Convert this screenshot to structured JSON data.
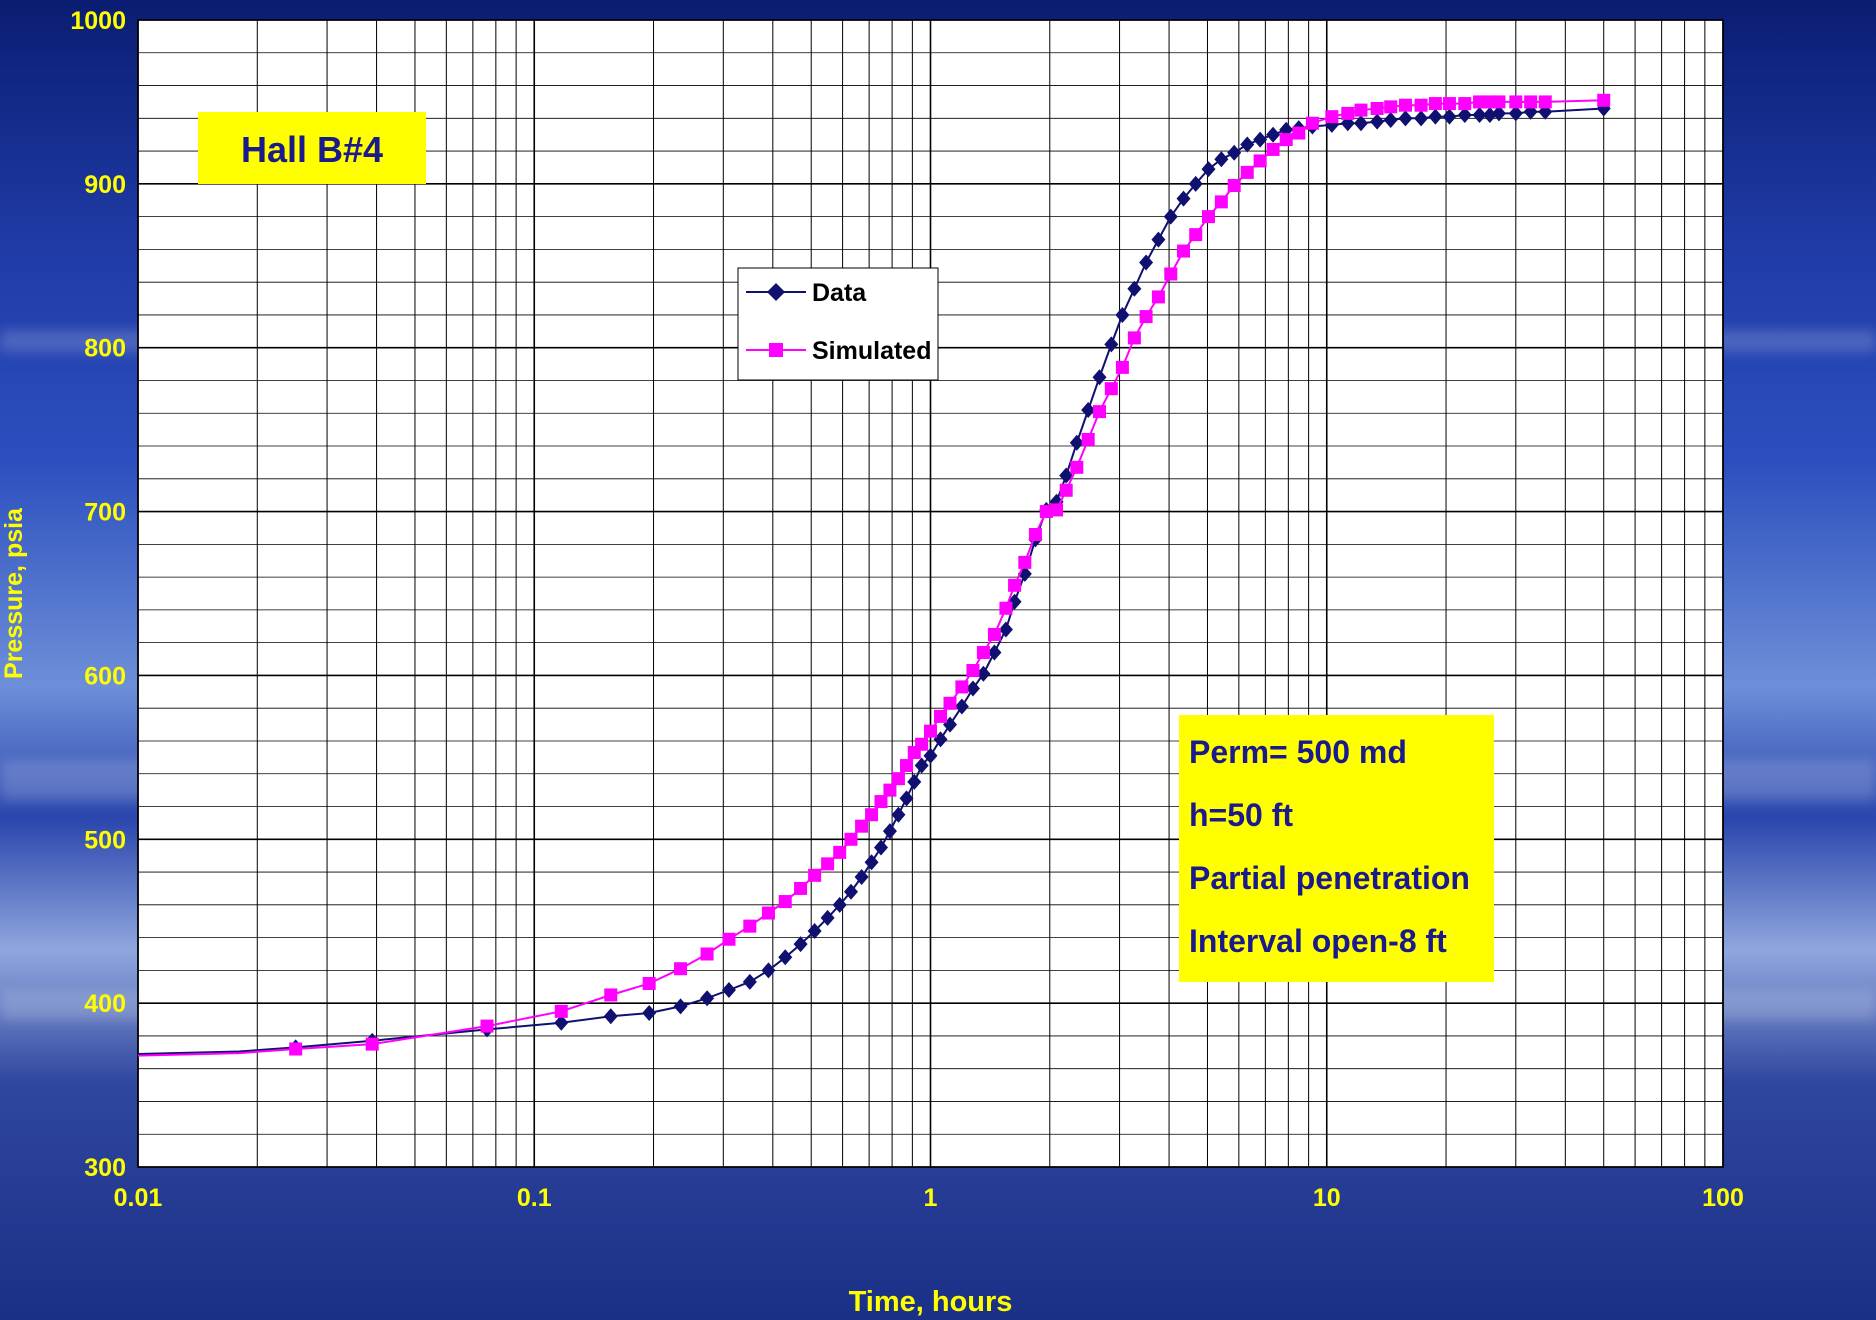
{
  "chart_data": {
    "type": "scatter",
    "title": "",
    "xlabel": "Time, hours",
    "ylabel": "Pressure, psia",
    "xscale": "log",
    "xlim": [
      0.01,
      100
    ],
    "ylim": [
      300,
      1000
    ],
    "x_ticks": [
      "0.01",
      "0.1",
      "1",
      "10",
      "100"
    ],
    "y_ticks": [
      "300",
      "400",
      "500",
      "600",
      "700",
      "800",
      "900",
      "1000"
    ],
    "grid": true,
    "legend_position": "upper-center",
    "annotations": {
      "well": "Hall B#4",
      "params": [
        "Perm= 500 md",
        "h=50 ft",
        "Partial penetration",
        "Interval open-8 ft"
      ]
    },
    "series": [
      {
        "name": "Data",
        "color": "#101070",
        "marker": "diamond",
        "points": [
          [
            0.025,
            373
          ],
          [
            0.039,
            377
          ],
          [
            0.076,
            384
          ],
          [
            0.117,
            388
          ],
          [
            0.156,
            392
          ],
          [
            0.195,
            394
          ],
          [
            0.234,
            398
          ],
          [
            0.273,
            403
          ],
          [
            0.31,
            408
          ],
          [
            0.35,
            413
          ],
          [
            0.39,
            420
          ],
          [
            0.43,
            428
          ],
          [
            0.47,
            436
          ],
          [
            0.51,
            444
          ],
          [
            0.55,
            452
          ],
          [
            0.59,
            460
          ],
          [
            0.63,
            468
          ],
          [
            0.67,
            477
          ],
          [
            0.71,
            486
          ],
          [
            0.75,
            495
          ],
          [
            0.79,
            505
          ],
          [
            0.83,
            515
          ],
          [
            0.87,
            525
          ],
          [
            0.91,
            535
          ],
          [
            0.95,
            545
          ],
          [
            1.0,
            551
          ],
          [
            1.06,
            561
          ],
          [
            1.12,
            570
          ],
          [
            1.2,
            581
          ],
          [
            1.28,
            592
          ],
          [
            1.36,
            601
          ],
          [
            1.45,
            614
          ],
          [
            1.55,
            628
          ],
          [
            1.63,
            645
          ],
          [
            1.73,
            662
          ],
          [
            1.84,
            683
          ],
          [
            1.96,
            701
          ],
          [
            2.08,
            706
          ],
          [
            2.2,
            722
          ],
          [
            2.34,
            742
          ],
          [
            2.5,
            762
          ],
          [
            2.67,
            782
          ],
          [
            2.86,
            802
          ],
          [
            3.05,
            820
          ],
          [
            3.27,
            836
          ],
          [
            3.5,
            852
          ],
          [
            3.76,
            866
          ],
          [
            4.04,
            880
          ],
          [
            4.35,
            891
          ],
          [
            4.67,
            900
          ],
          [
            5.03,
            909
          ],
          [
            5.42,
            915
          ],
          [
            5.84,
            919
          ],
          [
            6.3,
            924
          ],
          [
            6.79,
            927
          ],
          [
            7.32,
            930
          ],
          [
            7.9,
            933
          ],
          [
            8.5,
            934
          ],
          [
            9.2,
            935
          ],
          [
            10.3,
            936
          ],
          [
            11.3,
            937
          ],
          [
            12.2,
            937
          ],
          [
            13.4,
            938
          ],
          [
            14.5,
            939
          ],
          [
            15.8,
            940
          ],
          [
            17.3,
            940
          ],
          [
            18.8,
            941
          ],
          [
            20.4,
            941
          ],
          [
            22.3,
            942
          ],
          [
            24.3,
            942
          ],
          [
            25.8,
            942
          ],
          [
            27.2,
            943
          ],
          [
            30.0,
            943
          ],
          [
            32.7,
            944
          ],
          [
            35.6,
            944
          ],
          [
            50.0,
            946
          ]
        ]
      },
      {
        "name": "Simulated",
        "color": "#ff00ff",
        "marker": "square",
        "points": [
          [
            0.025,
            372
          ],
          [
            0.039,
            375
          ],
          [
            0.076,
            386
          ],
          [
            0.117,
            395
          ],
          [
            0.156,
            405
          ],
          [
            0.195,
            412
          ],
          [
            0.234,
            421
          ],
          [
            0.273,
            430
          ],
          [
            0.31,
            439
          ],
          [
            0.35,
            447
          ],
          [
            0.39,
            455
          ],
          [
            0.43,
            462
          ],
          [
            0.47,
            470
          ],
          [
            0.51,
            478
          ],
          [
            0.55,
            485
          ],
          [
            0.59,
            492
          ],
          [
            0.63,
            500
          ],
          [
            0.67,
            508
          ],
          [
            0.71,
            515
          ],
          [
            0.75,
            523
          ],
          [
            0.79,
            530
          ],
          [
            0.83,
            537
          ],
          [
            0.87,
            545
          ],
          [
            0.91,
            553
          ],
          [
            0.95,
            558
          ],
          [
            1.0,
            566
          ],
          [
            1.06,
            575
          ],
          [
            1.12,
            583
          ],
          [
            1.2,
            593
          ],
          [
            1.28,
            603
          ],
          [
            1.36,
            614
          ],
          [
            1.45,
            625
          ],
          [
            1.55,
            641
          ],
          [
            1.63,
            655
          ],
          [
            1.73,
            669
          ],
          [
            1.84,
            686
          ],
          [
            1.96,
            700
          ],
          [
            2.08,
            701
          ],
          [
            2.2,
            713
          ],
          [
            2.34,
            727
          ],
          [
            2.5,
            744
          ],
          [
            2.67,
            761
          ],
          [
            2.86,
            775
          ],
          [
            3.05,
            788
          ],
          [
            3.27,
            806
          ],
          [
            3.5,
            819
          ],
          [
            3.76,
            831
          ],
          [
            4.04,
            845
          ],
          [
            4.35,
            859
          ],
          [
            4.67,
            869
          ],
          [
            5.03,
            880
          ],
          [
            5.42,
            889
          ],
          [
            5.84,
            899
          ],
          [
            6.3,
            907
          ],
          [
            6.79,
            914
          ],
          [
            7.32,
            921
          ],
          [
            7.9,
            927
          ],
          [
            8.5,
            931
          ],
          [
            9.2,
            937
          ],
          [
            10.3,
            941
          ],
          [
            11.3,
            943
          ],
          [
            12.2,
            945
          ],
          [
            13.4,
            946
          ],
          [
            14.5,
            947
          ],
          [
            15.8,
            948
          ],
          [
            17.3,
            948
          ],
          [
            18.8,
            949
          ],
          [
            20.4,
            949
          ],
          [
            22.3,
            949
          ],
          [
            24.3,
            950
          ],
          [
            25.8,
            950
          ],
          [
            27.2,
            950
          ],
          [
            30.0,
            950
          ],
          [
            32.7,
            950
          ],
          [
            35.6,
            950
          ],
          [
            50.0,
            951
          ]
        ]
      }
    ]
  }
}
